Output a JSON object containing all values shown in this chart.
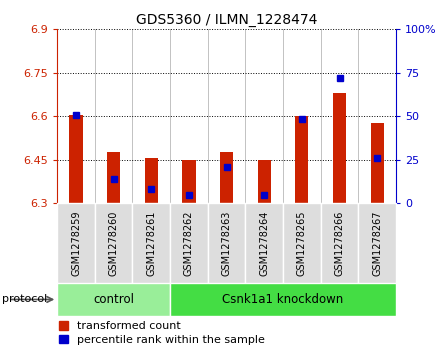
{
  "title": "GDS5360 / ILMN_1228474",
  "samples": [
    "GSM1278259",
    "GSM1278260",
    "GSM1278261",
    "GSM1278262",
    "GSM1278263",
    "GSM1278264",
    "GSM1278265",
    "GSM1278266",
    "GSM1278267"
  ],
  "red_values": [
    6.605,
    6.475,
    6.455,
    6.45,
    6.475,
    6.45,
    6.6,
    6.68,
    6.575
  ],
  "blue_values": [
    6.605,
    6.385,
    6.35,
    6.33,
    6.425,
    6.33,
    6.59,
    6.73,
    6.455
  ],
  "y_min": 6.3,
  "y_max": 6.9,
  "y_ticks": [
    6.3,
    6.45,
    6.6,
    6.75,
    6.9
  ],
  "y_tick_labels": [
    "6.3",
    "6.45",
    "6.6",
    "6.75",
    "6.9"
  ],
  "right_y_ticks": [
    0,
    25,
    50,
    75,
    100
  ],
  "right_y_tick_labels": [
    "0",
    "25",
    "50",
    "75",
    "100%"
  ],
  "bar_color": "#cc2200",
  "dot_color": "#0000cc",
  "control_color": "#99ee99",
  "knockdown_color": "#44dd44",
  "control_samples": 3,
  "knockdown_samples": 6,
  "protocol_label": "protocol",
  "control_label": "control",
  "knockdown_label": "Csnk1a1 knockdown",
  "legend_red": "transformed count",
  "legend_blue": "percentile rank within the sample",
  "tick_bg_color": "#dddddd",
  "bar_width": 0.35
}
